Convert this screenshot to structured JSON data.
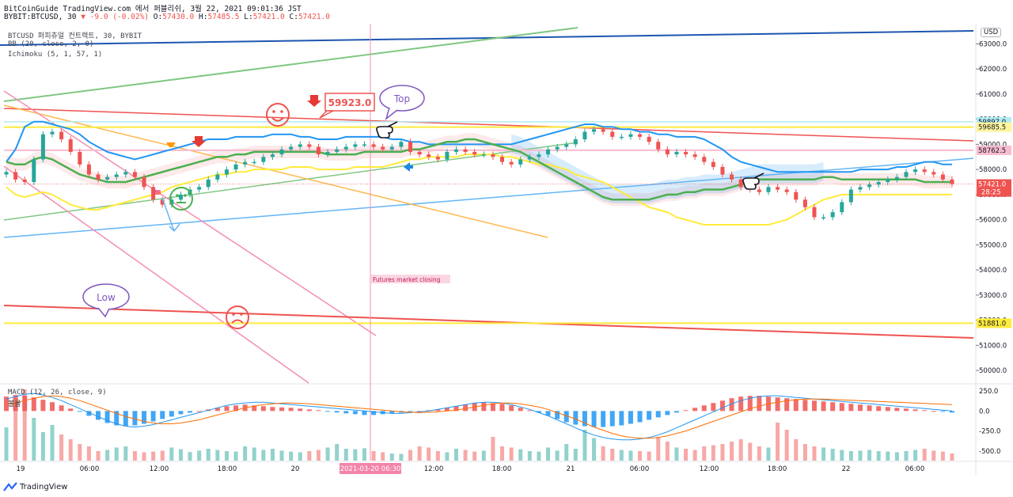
{
  "header": {
    "line1": "BitCoinGuide TradingView.com 에서 퍼블리쉬, 3월 22, 2021 09:01:36 JST",
    "symbol": "BYBIT:BTCUSD, 30",
    "change": "▼ -9.0 (-0.02%)",
    "o_label": "O:",
    "o": "57430.0",
    "h_label": "H:",
    "h": "57485.5",
    "l_label": "L:",
    "l": "57421.0",
    "c_label": "C:",
    "c": "57421.0"
  },
  "indicators": {
    "main": "BTCUSD 퍼피츄얼 컨트랙트, 30, BYBIT",
    "bb": "BB (20, close, 2, 0)",
    "ichimoku": "Ichimoku (5, 1, 57, 1)",
    "macd": "MACD (12, 26, close, 9)",
    "volume": "볼륨"
  },
  "currency": "USD",
  "branding": "TradingView",
  "colors": {
    "up": "#26a69a",
    "down": "#ef5350",
    "bb": "#2196f3",
    "bb_lower": "#ffeb3b",
    "base": "#4caf50",
    "yellow_line": "#ffeb3b",
    "red_line": "#ef5350",
    "green_line": "#81c784",
    "blue_line": "#64b5f6",
    "orange_line": "#ffb74d",
    "navy_line": "#1e56b0",
    "pink_line": "#f48fb1"
  },
  "chart_data": {
    "type": "line",
    "title": "BTCUSD",
    "y_axis_labels": [
      "63000.0",
      "62000.0",
      "61000.0",
      "60000.0",
      "59000.0",
      "58000.0",
      "57000.0",
      "56000.0",
      "55000.0",
      "54000.0",
      "53000.0",
      "52000.0",
      "51000.0",
      "50000.0"
    ],
    "ylim": [
      49500,
      63800
    ],
    "x_axis_labels": [
      "19",
      "06:00",
      "12:00",
      "18:00",
      "20",
      "2021-03-20  06:30",
      "12:00",
      "18:00",
      "21",
      "06:00",
      "12:00",
      "18:00",
      "22",
      "06:00"
    ],
    "price_tags": [
      {
        "value": 59897.0,
        "text": "59897.0",
        "color": "#b2ebf2",
        "fg": "#131722"
      },
      {
        "value": 59685.5,
        "text": "59685.5",
        "color": "#fff59d",
        "fg": "#131722"
      },
      {
        "value": 58762.5,
        "text": "58762.5",
        "color": "#f8bbd0",
        "fg": "#131722"
      },
      {
        "value": 57421.0,
        "text": "57421.0",
        "color": "#ef5350",
        "fg": "#ffffff",
        "sub": "28:25"
      },
      {
        "value": 51881.0,
        "text": "51881.0",
        "color": "#ffeb3b",
        "fg": "#131722"
      }
    ],
    "annotations": [
      {
        "text": "59923.0",
        "type": "price-callout"
      },
      {
        "text": "Top",
        "type": "bubble"
      },
      {
        "text": "Low",
        "type": "bubble"
      },
      {
        "text": "Futures market closing",
        "type": "vertical-line-label"
      }
    ],
    "macd_axis_labels": [
      "250.0",
      "0.0",
      "-250.0",
      "-500.0"
    ],
    "macd_ylim": [
      -620,
      320
    ],
    "close": [
      57900,
      57600,
      57500,
      58400,
      59400,
      59500,
      59200,
      58700,
      58200,
      57800,
      57600,
      57700,
      57800,
      57900,
      57700,
      57300,
      56800,
      56600,
      56800,
      57000,
      57200,
      57300,
      57600,
      57800,
      58000,
      58200,
      58300,
      58300,
      58500,
      58600,
      58800,
      58900,
      59000,
      58900,
      58600,
      58700,
      58800,
      58900,
      59000,
      59000,
      58900,
      58800,
      58900,
      59100,
      58700,
      58600,
      58500,
      58400,
      58700,
      58800,
      58700,
      58600,
      58600,
      58500,
      58300,
      58200,
      58400,
      58500,
      58600,
      58800,
      58900,
      59000,
      59200,
      59500,
      59600,
      59500,
      59300,
      59300,
      59400,
      59300,
      59100,
      58800,
      58600,
      58700,
      58600,
      58500,
      58300,
      58100,
      57800,
      57600,
      57300,
      57200,
      57100,
      57300,
      57200,
      57100,
      56800,
      56500,
      56100,
      56100,
      56300,
      56700,
      57200,
      57300,
      57400,
      57500,
      57600,
      57700,
      57900,
      58000,
      57900,
      57800,
      57600,
      57421
    ],
    "bb_upper": [
      58300,
      58800,
      59700,
      59900,
      59900,
      59800,
      59700,
      59600,
      59400,
      59100,
      58900,
      58700,
      58600,
      58500,
      58400,
      58500,
      58600,
      58700,
      58800,
      58900,
      59000,
      59100,
      59200,
      59200,
      59200,
      59300,
      59300,
      59300,
      59300,
      59400,
      59400,
      59400,
      59300,
      59300,
      59200,
      59200,
      59200,
      59300,
      59300,
      59300,
      59300,
      59300,
      59200,
      59200,
      59100,
      59100,
      59000,
      59000,
      59000,
      59000,
      59000,
      59000,
      59000,
      59000,
      59000,
      59000,
      59100,
      59200,
      59300,
      59400,
      59500,
      59600,
      59700,
      59800,
      59800,
      59700,
      59700,
      59600,
      59600,
      59500,
      59500,
      59400,
      59400,
      59300,
      59300,
      59300,
      59200,
      59000,
      58800,
      58500,
      58300,
      58200,
      58100,
      58000,
      57900,
      57900,
      57900,
      57900,
      57900,
      57900,
      57900,
      57900,
      57900,
      58000,
      58000,
      58000,
      58000,
      58100,
      58100,
      58200,
      58300,
      58300,
      58200,
      58200
    ],
    "bb_lower": [
      57300,
      57000,
      56900,
      57000,
      57100,
      57000,
      56800,
      56600,
      56500,
      56400,
      56400,
      56500,
      56600,
      56700,
      56800,
      56900,
      57000,
      57100,
      57300,
      57400,
      57500,
      57600,
      57700,
      57800,
      57800,
      57900,
      57900,
      58000,
      58000,
      58000,
      58000,
      58100,
      58100,
      58100,
      58000,
      58000,
      58000,
      58000,
      58100,
      58100,
      58100,
      58100,
      58200,
      58300,
      58400,
      58400,
      58500,
      58500,
      58500,
      58500,
      58600,
      58600,
      58600,
      58600,
      58500,
      58500,
      58400,
      58300,
      58200,
      58200,
      58100,
      58000,
      57800,
      57700,
      57600,
      57500,
      57300,
      57100,
      56900,
      56700,
      56500,
      56400,
      56300,
      56100,
      56000,
      55900,
      55800,
      55800,
      55800,
      55800,
      55800,
      55800,
      55800,
      55800,
      55900,
      56000,
      56200,
      56400,
      56600,
      56800,
      56900,
      57000,
      57000,
      57000,
      57000,
      57000,
      57000,
      57000,
      57000,
      57000,
      57000,
      57000,
      57000,
      57000
    ],
    "base_line": [
      58300,
      58200,
      58200,
      58400,
      58500,
      58400,
      58200,
      58000,
      57800,
      57700,
      57600,
      57500,
      57500,
      57500,
      57600,
      57700,
      57800,
      57900,
      58000,
      58100,
      58200,
      58300,
      58400,
      58500,
      58500,
      58600,
      58600,
      58700,
      58700,
      58700,
      58700,
      58700,
      58700,
      58700,
      58700,
      58600,
      58600,
      58600,
      58600,
      58700,
      58700,
      58700,
      58700,
      58700,
      58800,
      58800,
      58900,
      59000,
      59100,
      59100,
      59200,
      59200,
      59100,
      59000,
      58900,
      58800,
      58700,
      58500,
      58300,
      58100,
      57900,
      57700,
      57500,
      57300,
      57100,
      56900,
      56800,
      56800,
      56800,
      56800,
      56800,
      56900,
      57000,
      57000,
      57100,
      57100,
      57200,
      57200,
      57200,
      57300,
      57400,
      57500,
      57600,
      57600,
      57600,
      57600,
      57600,
      57600,
      57600,
      57700,
      57700,
      57600,
      57600,
      57600,
      57600,
      57600,
      57600,
      57600,
      57600,
      57600,
      57500,
      57500,
      57500,
      57500
    ],
    "volume": [
      140,
      230,
      300,
      180,
      120,
      150,
      110,
      90,
      70,
      60,
      40,
      45,
      55,
      60,
      40,
      35,
      38,
      42,
      55,
      48,
      36,
      42,
      50,
      45,
      40,
      38,
      60,
      55,
      45,
      50,
      42,
      38,
      35,
      40,
      45,
      55,
      70,
      50,
      48,
      52,
      40,
      35,
      30,
      28,
      45,
      60,
      55,
      40,
      35,
      50,
      45,
      38,
      42,
      100,
      60,
      55,
      48,
      40,
      38,
      55,
      42,
      70,
      50,
      130,
      95,
      60,
      50,
      45,
      42,
      40,
      38,
      100,
      80,
      55,
      50,
      45,
      60,
      65,
      70,
      80,
      90,
      75,
      60,
      55,
      160,
      130,
      90,
      70,
      60,
      55,
      50,
      45,
      40,
      42,
      45,
      40,
      38,
      35,
      40,
      45,
      50,
      42,
      38,
      30
    ],
    "macd_hist": [
      180,
      200,
      190,
      170,
      140,
      110,
      70,
      30,
      -10,
      -60,
      -110,
      -150,
      -180,
      -190,
      -180,
      -160,
      -130,
      -100,
      -70,
      -40,
      -20,
      0,
      20,
      40,
      60,
      70,
      80,
      70,
      60,
      50,
      45,
      40,
      30,
      20,
      10,
      -10,
      -20,
      -30,
      -40,
      -50,
      -50,
      -40,
      -30,
      -20,
      -10,
      0,
      10,
      20,
      40,
      60,
      80,
      100,
      110,
      100,
      90,
      70,
      40,
      10,
      -20,
      -60,
      -100,
      -140,
      -170,
      -190,
      -200,
      -200,
      -190,
      -180,
      -160,
      -140,
      -110,
      -80,
      -50,
      -20,
      10,
      40,
      70,
      100,
      130,
      160,
      180,
      190,
      190,
      180,
      170,
      160,
      150,
      140,
      130,
      120,
      110,
      100,
      90,
      80,
      70,
      60,
      50,
      40,
      30,
      20,
      10,
      0,
      -10,
      -20
    ],
    "macd_line": [
      150,
      180,
      210,
      220,
      200,
      170,
      130,
      80,
      30,
      -20,
      -70,
      -120,
      -160,
      -190,
      -200,
      -190,
      -170,
      -140,
      -110,
      -80,
      -50,
      -20,
      10,
      40,
      70,
      90,
      100,
      110,
      110,
      100,
      90,
      80,
      70,
      60,
      50,
      40,
      30,
      20,
      10,
      0,
      -10,
      -20,
      -30,
      -30,
      -20,
      -10,
      0,
      20,
      40,
      60,
      80,
      100,
      110,
      110,
      100,
      80,
      50,
      20,
      -20,
      -60,
      -110,
      -160,
      -210,
      -260,
      -300,
      -330,
      -350,
      -360,
      -360,
      -350,
      -330,
      -300,
      -260,
      -210,
      -160,
      -110,
      -60,
      -10,
      40,
      90,
      130,
      160,
      180,
      190,
      190,
      180,
      170,
      160,
      150,
      140,
      130,
      120,
      110,
      100,
      90,
      80,
      70,
      60,
      50,
      40,
      30,
      20,
      10,
      0
    ],
    "signal_line": [
      80,
      100,
      130,
      160,
      180,
      190,
      180,
      160,
      130,
      90,
      50,
      10,
      -30,
      -70,
      -100,
      -130,
      -150,
      -160,
      -160,
      -150,
      -130,
      -110,
      -80,
      -50,
      -20,
      10,
      40,
      60,
      80,
      90,
      100,
      100,
      95,
      90,
      80,
      70,
      60,
      50,
      40,
      30,
      20,
      10,
      0,
      -10,
      -15,
      -20,
      -15,
      -10,
      0,
      10,
      30,
      50,
      70,
      90,
      100,
      100,
      90,
      70,
      50,
      20,
      -20,
      -60,
      -100,
      -150,
      -200,
      -240,
      -280,
      -310,
      -330,
      -340,
      -340,
      -330,
      -310,
      -280,
      -250,
      -210,
      -170,
      -130,
      -90,
      -50,
      -10,
      30,
      60,
      90,
      110,
      130,
      140,
      150,
      150,
      150,
      145,
      140,
      135,
      130,
      125,
      120,
      115,
      110,
      105,
      100,
      95,
      90,
      85,
      80
    ]
  }
}
